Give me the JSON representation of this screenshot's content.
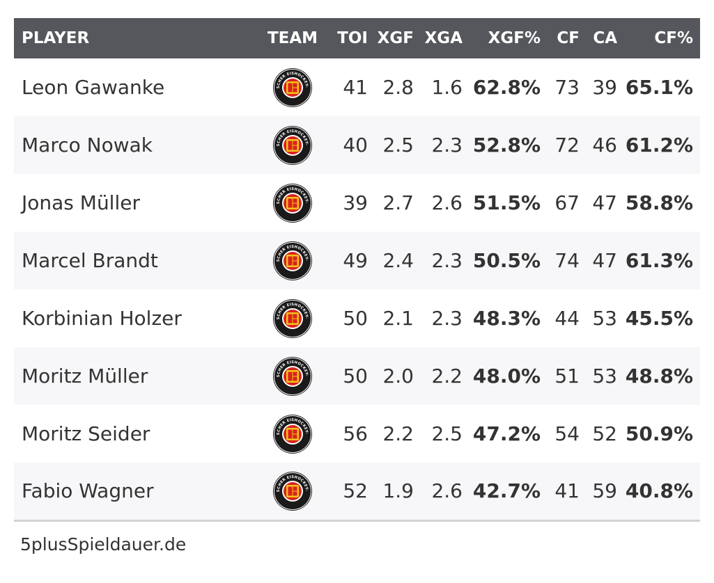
{
  "table": {
    "headers": {
      "player": "PLAYER",
      "team": "TEAM",
      "toi": "TOI",
      "xgf": "XGF",
      "xga": "XGA",
      "xgf_pct": "XGF%",
      "cf": "CF",
      "ca": "CA",
      "cf_pct": "CF%"
    },
    "team_logo": {
      "icon": "deb-logo-icon",
      "text": "DEUTSCHER EISHOCKEY-BUND",
      "colors": {
        "ring": "#1a1a1a",
        "inner": "#d9231d",
        "gold": "#f2c31a"
      }
    },
    "rows": [
      {
        "player": "Leon Gawanke",
        "toi": "41",
        "xgf": "2.8",
        "xga": "1.6",
        "xgf_pct": "62.8%",
        "cf": "73",
        "ca": "39",
        "cf_pct": "65.1%"
      },
      {
        "player": "Marco Nowak",
        "toi": "40",
        "xgf": "2.5",
        "xga": "2.3",
        "xgf_pct": "52.8%",
        "cf": "72",
        "ca": "46",
        "cf_pct": "61.2%"
      },
      {
        "player": "Jonas Müller",
        "toi": "39",
        "xgf": "2.7",
        "xga": "2.6",
        "xgf_pct": "51.5%",
        "cf": "67",
        "ca": "47",
        "cf_pct": "58.8%"
      },
      {
        "player": "Marcel Brandt",
        "toi": "49",
        "xgf": "2.4",
        "xga": "2.3",
        "xgf_pct": "50.5%",
        "cf": "74",
        "ca": "47",
        "cf_pct": "61.3%"
      },
      {
        "player": "Korbinian Holzer",
        "toi": "50",
        "xgf": "2.1",
        "xga": "2.3",
        "xgf_pct": "48.3%",
        "cf": "44",
        "ca": "53",
        "cf_pct": "45.5%"
      },
      {
        "player": "Moritz Müller",
        "toi": "50",
        "xgf": "2.0",
        "xga": "2.2",
        "xgf_pct": "48.0%",
        "cf": "51",
        "ca": "53",
        "cf_pct": "48.8%"
      },
      {
        "player": "Moritz Seider",
        "toi": "56",
        "xgf": "2.2",
        "xga": "2.5",
        "xgf_pct": "47.2%",
        "cf": "54",
        "ca": "52",
        "cf_pct": "50.9%"
      },
      {
        "player": "Fabio Wagner",
        "toi": "52",
        "xgf": "1.9",
        "xga": "2.6",
        "xgf_pct": "42.7%",
        "cf": "41",
        "ca": "59",
        "cf_pct": "40.8%"
      }
    ]
  },
  "source": "5plusSpieldauer.de",
  "colors": {
    "header_bg": "#55575c",
    "header_text": "#ffffff",
    "row_alt_bg": "#f7f7f9",
    "text": "#333333"
  }
}
